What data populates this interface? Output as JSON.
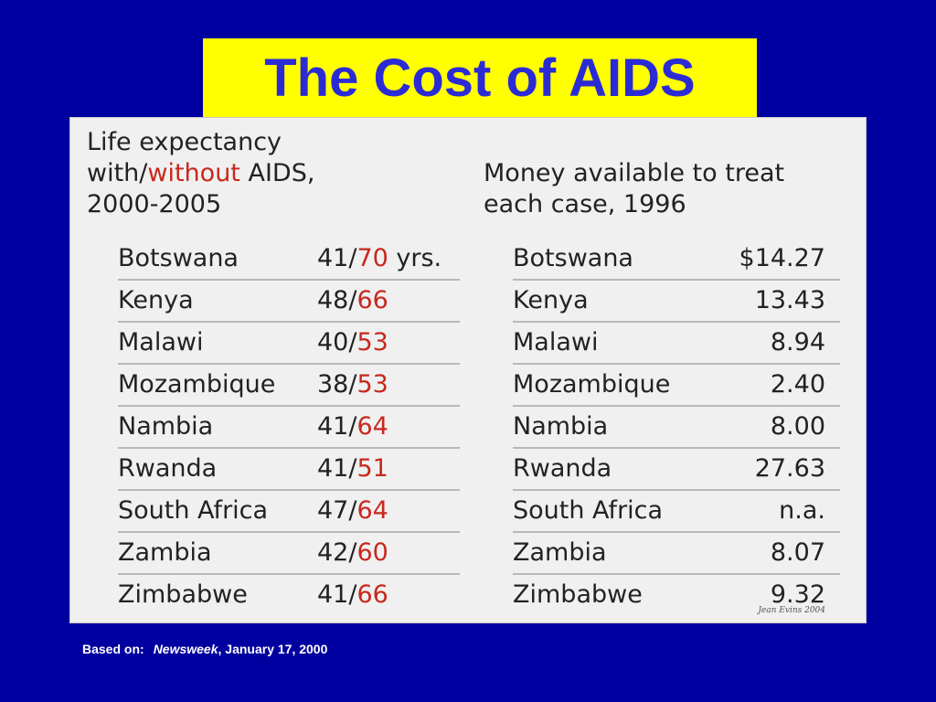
{
  "title": "The Cost of AIDS",
  "left_table": {
    "heading_line1": "Life expectancy",
    "heading_with": "with/",
    "heading_without": "without",
    "heading_aids": " AIDS,",
    "heading_line3": "2000-2005",
    "rows": [
      {
        "country": "Botswana",
        "with": "41",
        "without": "70",
        "suffix": " yrs."
      },
      {
        "country": "Kenya",
        "with": "48",
        "without": "66",
        "suffix": ""
      },
      {
        "country": "Malawi",
        "with": "40",
        "without": "53",
        "suffix": ""
      },
      {
        "country": "Mozambique",
        "with": "38",
        "without": "53",
        "suffix": ""
      },
      {
        "country": "Nambia",
        "with": "41",
        "without": "64",
        "suffix": ""
      },
      {
        "country": "Rwanda",
        "with": "41",
        "without": "51",
        "suffix": ""
      },
      {
        "country": "South Africa",
        "with": "47",
        "without": "64",
        "suffix": ""
      },
      {
        "country": "Zambia",
        "with": "42",
        "without": "60",
        "suffix": ""
      },
      {
        "country": "Zimbabwe",
        "with": "41",
        "without": "66",
        "suffix": ""
      }
    ]
  },
  "right_table": {
    "heading_line1": "Money available to treat",
    "heading_line2": "each case, 1996",
    "rows": [
      {
        "country": "Botswana",
        "amount": "$14.27"
      },
      {
        "country": "Kenya",
        "amount": "13.43"
      },
      {
        "country": "Malawi",
        "amount": "8.94"
      },
      {
        "country": "Mozambique",
        "amount": "2.40"
      },
      {
        "country": "Nambia",
        "amount": "8.00"
      },
      {
        "country": "Rwanda",
        "amount": "27.63"
      },
      {
        "country": "South Africa",
        "amount": "n.a."
      },
      {
        "country": "Zambia",
        "amount": "8.07"
      },
      {
        "country": "Zimbabwe",
        "amount": "9.32"
      }
    ]
  },
  "signature": "Jean Evins 2004",
  "source": {
    "label": "Based on:",
    "publication": "Newsweek",
    "date": ", January 17, 2000"
  },
  "colors": {
    "background": "#0000a0",
    "title_box": "#ffff00",
    "title_text": "#2b2bd6",
    "accent": "#c8281e"
  }
}
